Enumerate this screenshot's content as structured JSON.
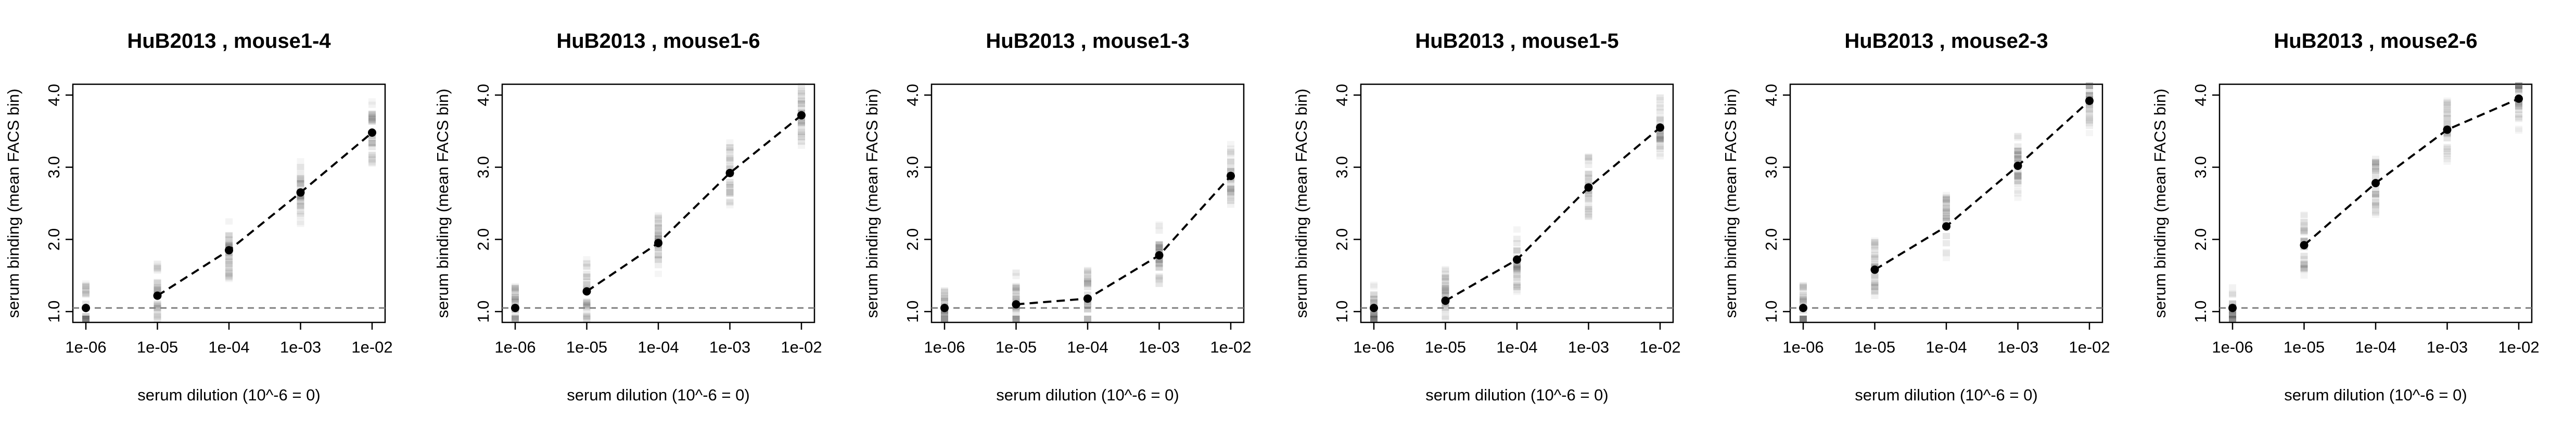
{
  "chart_data": {
    "type": "line",
    "x": [
      "1e-06",
      "1e-05",
      "1e-04",
      "1e-03",
      "1e-02"
    ],
    "x_values": [
      1e-06,
      1e-05,
      0.0001,
      0.001,
      0.01
    ],
    "xlabel": "serum dilution (10^-6 = 0)",
    "ylabel": "serum binding (mean FACS bin)",
    "y_ticks": [
      "1.0",
      "2.0",
      "3.0",
      "4.0"
    ],
    "ylim": [
      0.85,
      4.15
    ],
    "baseline": 1.05,
    "x_scale": "log10",
    "grid": false,
    "line_style": "dashed",
    "baseline_color": "#808080",
    "marker_color": "#000000",
    "panels": [
      {
        "title": "HuB2013 , mouse1-4",
        "values": [
          1.05,
          1.22,
          1.85,
          2.65,
          3.48
        ]
      },
      {
        "title": "HuB2013 , mouse1-6",
        "values": [
          1.05,
          1.28,
          1.95,
          2.92,
          3.72
        ]
      },
      {
        "title": "HuB2013 , mouse1-3",
        "values": [
          1.05,
          1.1,
          1.18,
          1.78,
          2.88
        ]
      },
      {
        "title": "HuB2013 , mouse1-5",
        "values": [
          1.05,
          1.15,
          1.72,
          2.72,
          3.55
        ]
      },
      {
        "title": "HuB2013 , mouse2-3",
        "values": [
          1.05,
          1.58,
          2.18,
          3.02,
          3.92
        ]
      },
      {
        "title": "HuB2013 , mouse2-6",
        "values": [
          1.05,
          1.92,
          2.78,
          3.52,
          3.95
        ]
      }
    ]
  }
}
